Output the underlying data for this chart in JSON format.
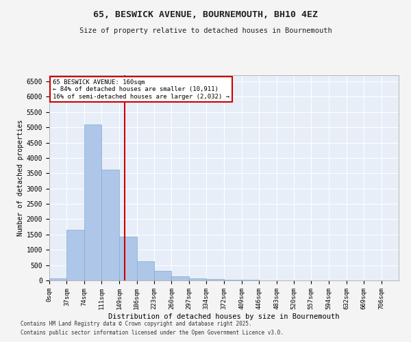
{
  "title": "65, BESWICK AVENUE, BOURNEMOUTH, BH10 4EZ",
  "subtitle": "Size of property relative to detached houses in Bournemouth",
  "xlabel": "Distribution of detached houses by size in Bournemouth",
  "ylabel": "Number of detached properties",
  "footnote1": "Contains HM Land Registry data © Crown copyright and database right 2025.",
  "footnote2": "Contains public sector information licensed under the Open Government Licence v3.0.",
  "annotation_title": "65 BESWICK AVENUE: 160sqm",
  "annotation_line1": "← 84% of detached houses are smaller (10,911)",
  "annotation_line2": "16% of semi-detached houses are larger (2,032) →",
  "property_size": 160,
  "bins": [
    0,
    37,
    74,
    111,
    149,
    186,
    223,
    260,
    297,
    334,
    372,
    409,
    446,
    483,
    520,
    557,
    594,
    632,
    669,
    706,
    743
  ],
  "values": [
    75,
    1650,
    5100,
    3620,
    1420,
    615,
    315,
    135,
    75,
    45,
    30,
    15,
    8,
    5,
    3,
    2,
    2,
    1,
    1,
    1
  ],
  "bar_color": "#aec6e8",
  "bar_edge_color": "#7aafd4",
  "vline_color": "#cc0000",
  "vline_x": 160,
  "annotation_box_color": "#cc0000",
  "background_color": "#e8eef8",
  "grid_color": "#ffffff",
  "fig_background": "#f4f4f4",
  "ylim": [
    0,
    6700
  ],
  "yticks": [
    0,
    500,
    1000,
    1500,
    2000,
    2500,
    3000,
    3500,
    4000,
    4500,
    5000,
    5500,
    6000,
    6500
  ]
}
